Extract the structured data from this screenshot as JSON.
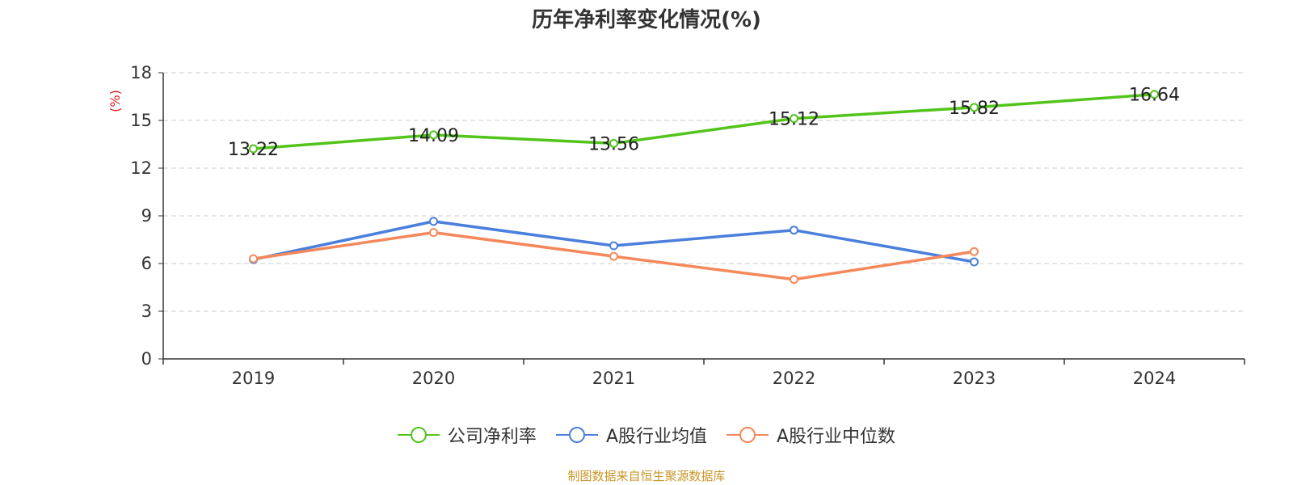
{
  "chart_data": {
    "type": "line",
    "title": "历年净利率变化情况(%)",
    "ylabel": "(%)",
    "categories": [
      "2019",
      "2020",
      "2021",
      "2022",
      "2023",
      "2024"
    ],
    "ylim": [
      0,
      18
    ],
    "yticks": [
      0,
      3,
      6,
      9,
      12,
      15,
      18
    ],
    "grid": true,
    "legend_position": "bottom",
    "series": [
      {
        "name": "公司净利率",
        "color": "#52c41a",
        "values": [
          13.22,
          14.09,
          13.56,
          15.12,
          15.82,
          16.64
        ],
        "labels": [
          "13.22",
          "14.09",
          "13.56",
          "15.12",
          "15.82",
          "16.64"
        ]
      },
      {
        "name": "A股行业均值",
        "color": "#4a7fdc",
        "values": [
          6.25,
          8.65,
          7.12,
          8.1,
          6.1,
          null
        ]
      },
      {
        "name": "A股行业中位数",
        "color": "#f5885a",
        "values": [
          6.3,
          7.95,
          6.45,
          5.0,
          6.75,
          null
        ]
      }
    ]
  },
  "footer": {
    "source": "制图数据来自恒生聚源数据库"
  }
}
